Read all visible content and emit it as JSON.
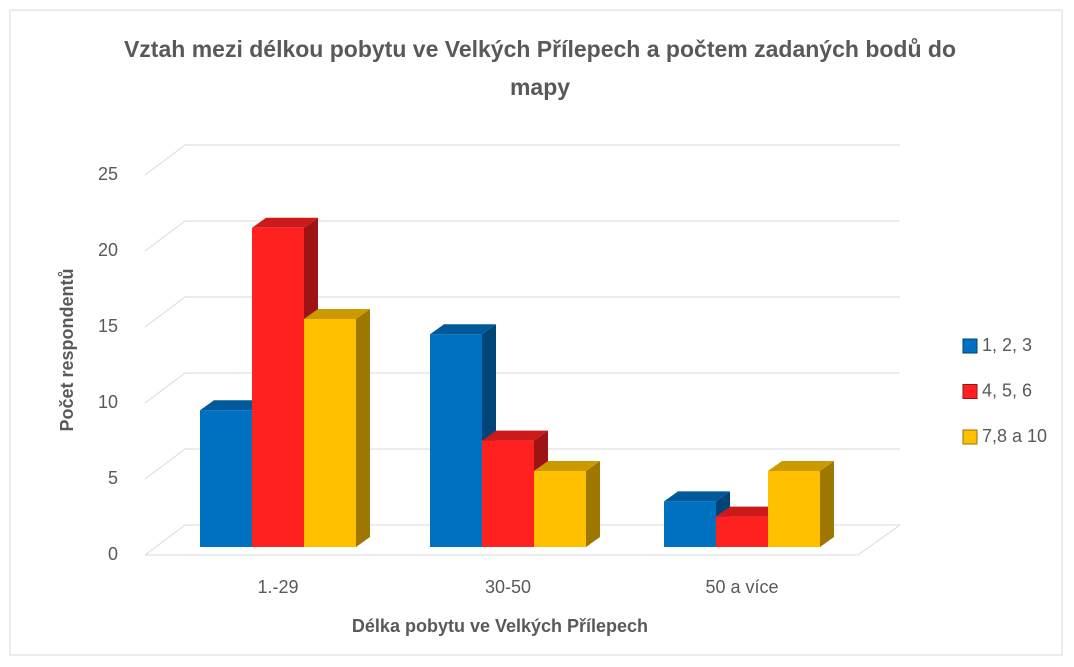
{
  "chart_data": {
    "type": "bar3d",
    "title": "Vztah mezi délkou pobytu ve Velkých Přílepech a počtem zadaných bodů do mapy",
    "xlabel": "Délka pobytu ve Velkých Přílepech",
    "ylabel": "Počet respondentů",
    "categories": [
      "1.-29",
      "30-50",
      "50 a více"
    ],
    "series": [
      {
        "name": "1, 2, 3",
        "color": "#0070c0",
        "values": [
          9,
          14,
          3
        ]
      },
      {
        "name": "4, 5, 6",
        "color": "#ff2020",
        "values": [
          21,
          7,
          2
        ]
      },
      {
        "name": "7,8 a 10",
        "color": "#ffc000",
        "values": [
          15,
          5,
          5
        ]
      }
    ],
    "ylim": [
      0,
      25
    ],
    "yticks": [
      0,
      5,
      10,
      15,
      20,
      25
    ],
    "grid": true,
    "legend": "right"
  }
}
